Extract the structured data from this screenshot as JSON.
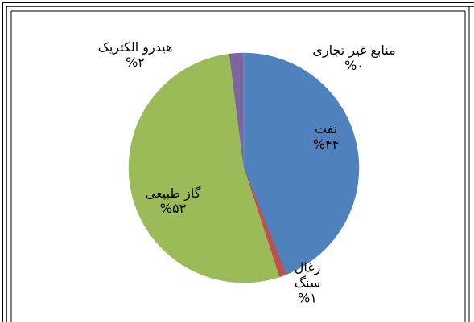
{
  "chart_data": {
    "type": "pie",
    "categories": [
      "نفت",
      "زغال سنگ",
      "گاز طبیعی",
      "هیدرو الکتریک",
      "منابع غیر تجاری"
    ],
    "values": [
      44,
      1,
      53,
      2,
      0
    ],
    "value_labels": [
      "%۴۴",
      "%۱",
      "%۵۳",
      "%۲",
      "%۰"
    ],
    "colors": [
      "#4f81bd",
      "#c0504d",
      "#9bbb59",
      "#8064a2",
      "#4bacc6"
    ]
  }
}
